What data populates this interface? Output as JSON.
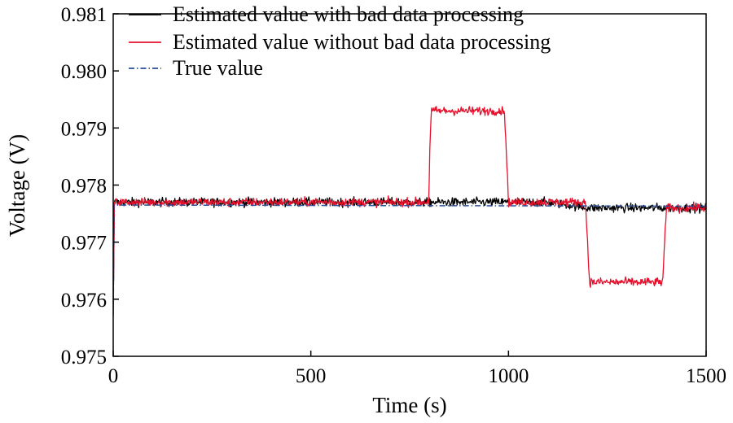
{
  "chart_data": {
    "type": "line",
    "title": "",
    "xlabel": "Time (s)",
    "ylabel": "Voltage (V)",
    "xlim": [
      0,
      1500
    ],
    "ylim": [
      0.975,
      0.981
    ],
    "xticks": [
      0,
      500,
      1000,
      1500
    ],
    "yticks": [
      0.975,
      0.976,
      0.977,
      0.978,
      0.979,
      0.98,
      0.981
    ],
    "xtick_labels": [
      "0",
      "500",
      "1000",
      "1500"
    ],
    "ytick_labels": [
      "0.975",
      "0.976",
      "0.977",
      "0.978",
      "0.979",
      "0.980",
      "0.981"
    ],
    "grid": false,
    "legend_position": "top-left",
    "series": [
      {
        "name": "Estimated value with bad data processing",
        "color": "#000000",
        "style": "solid",
        "x": [
          0,
          1,
          2,
          3,
          100,
          200,
          300,
          400,
          500,
          600,
          700,
          800,
          900,
          1000,
          1100,
          1200,
          1300,
          1400,
          1500
        ],
        "y": [
          0.9758,
          0.9764,
          0.977,
          0.9777,
          0.9777,
          0.9777,
          0.9777,
          0.9777,
          0.9777,
          0.9777,
          0.9777,
          0.9777,
          0.9777,
          0.9777,
          0.9777,
          0.9776,
          0.9776,
          0.9776,
          0.9776
        ],
        "noise_amplitude": 0.00013
      },
      {
        "name": "Estimated value without bad data processing",
        "color": "#e8112d",
        "style": "solid",
        "x": [
          0,
          1,
          2,
          3,
          100,
          200,
          300,
          400,
          500,
          600,
          700,
          799,
          800,
          805,
          900,
          990,
          995,
          1000,
          1100,
          1195,
          1200,
          1205,
          1300,
          1390,
          1395,
          1400,
          1500
        ],
        "y": [
          0.9758,
          0.9764,
          0.977,
          0.9777,
          0.9777,
          0.9777,
          0.9777,
          0.9777,
          0.9777,
          0.9777,
          0.9777,
          0.9777,
          0.9785,
          0.9793,
          0.9793,
          0.9793,
          0.9785,
          0.9777,
          0.9777,
          0.9777,
          0.977,
          0.9763,
          0.9763,
          0.9763,
          0.977,
          0.9776,
          0.9776
        ],
        "noise_amplitude": 0.00013
      },
      {
        "name": "True value",
        "color": "#2a4f9a",
        "style": "dashdot",
        "x": [
          0,
          1,
          2,
          1500
        ],
        "y": [
          0.9757,
          0.9764,
          0.97765,
          0.97763
        ],
        "noise_amplitude": 0
      }
    ]
  }
}
